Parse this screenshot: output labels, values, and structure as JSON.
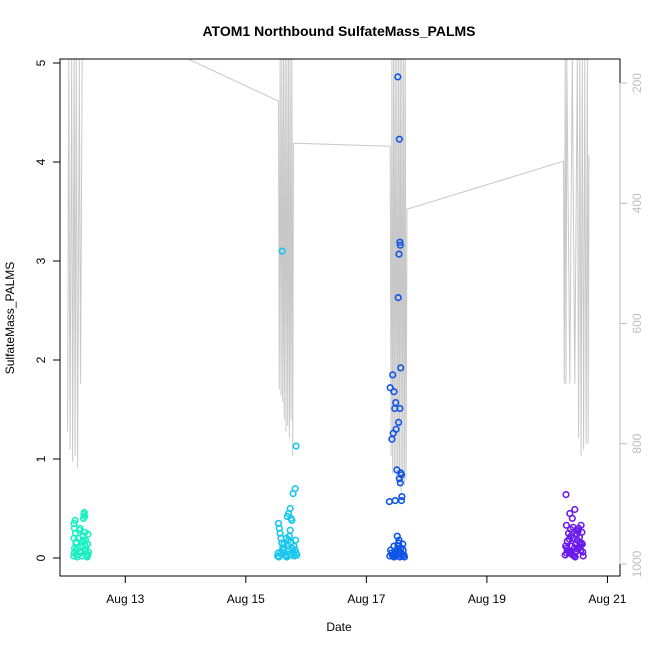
{
  "chart_data": {
    "type": "scatter",
    "title": "ATOM1 Northbound SulfateMass_PALMS",
    "xlabel": "Date",
    "ylabel": "SulfateMass_PALMS",
    "x_ticks": [
      "Aug 13",
      "Aug 15",
      "Aug 17",
      "Aug 19",
      "Aug 21"
    ],
    "y_ticks": [
      "0",
      "1",
      "2",
      "3",
      "4",
      "5"
    ],
    "y2_ticks": [
      "200",
      "400",
      "600",
      "800",
      "1000"
    ],
    "xlim": [
      "2016-08-11 22:00",
      "2016-08-21 05:00"
    ],
    "ylim": [
      0,
      5
    ],
    "y2lim": [
      1020,
      160
    ],
    "right_axis_color": "#BEBEBE",
    "altitude_line_color": "#C8C8C8",
    "series": [
      {
        "color": "#19F0C2",
        "points": [
          [
            "2016-08-12 03:30",
            0.02
          ],
          [
            "2016-08-12 03:40",
            0.05
          ],
          [
            "2016-08-12 03:50",
            0.1
          ],
          [
            "2016-08-12 03:35",
            0.2
          ],
          [
            "2016-08-12 03:45",
            0.3
          ],
          [
            "2016-08-12 03:38",
            0.35
          ],
          [
            "2016-08-12 04:00",
            0.38
          ],
          [
            "2016-08-12 04:10",
            0.25
          ],
          [
            "2016-08-12 04:20",
            0.15
          ],
          [
            "2016-08-12 04:30",
            0.08
          ],
          [
            "2016-08-12 04:40",
            0.03
          ],
          [
            "2016-08-12 04:50",
            0.01
          ],
          [
            "2016-08-12 05:00",
            0.1
          ],
          [
            "2016-08-12 05:20",
            0.2
          ],
          [
            "2016-08-12 05:40",
            0.28
          ],
          [
            "2016-08-12 06:00",
            0.3
          ],
          [
            "2016-08-12 06:20",
            0.05
          ],
          [
            "2016-08-12 06:40",
            0.02
          ],
          [
            "2016-08-12 07:00",
            0.12
          ],
          [
            "2016-08-12 07:10",
            0.22
          ],
          [
            "2016-08-12 07:20",
            0.4
          ],
          [
            "2016-08-12 07:30",
            0.44
          ],
          [
            "2016-08-12 07:40",
            0.46
          ],
          [
            "2016-08-12 07:50",
            0.42
          ],
          [
            "2016-08-12 08:00",
            0.26
          ],
          [
            "2016-08-12 08:10",
            0.18
          ],
          [
            "2016-08-12 08:20",
            0.09
          ],
          [
            "2016-08-12 08:30",
            0.04
          ],
          [
            "2016-08-12 08:40",
            0.02
          ],
          [
            "2016-08-12 08:50",
            0.01
          ],
          [
            "2016-08-12 09:00",
            0.14
          ],
          [
            "2016-08-12 09:10",
            0.24
          ],
          [
            "2016-08-12 09:20",
            0.06
          ],
          [
            "2016-08-12 07:15",
            0.18
          ],
          [
            "2016-08-12 05:50",
            0.06
          ],
          [
            "2016-08-12 06:50",
            0.16
          ],
          [
            "2016-08-12 08:05",
            0.12
          ],
          [
            "2016-08-12 04:35",
            0.16
          ],
          [
            "2016-08-12 09:05",
            0.03
          ]
        ]
      },
      {
        "color": "#18C6EE",
        "points": [
          [
            "2016-08-15 14:30",
            3.1
          ],
          [
            "2016-08-15 20:00",
            1.13
          ],
          [
            "2016-08-15 19:40",
            0.7
          ],
          [
            "2016-08-15 18:50",
            0.65
          ],
          [
            "2016-08-15 17:40",
            0.5
          ],
          [
            "2016-08-15 17:00",
            0.45
          ],
          [
            "2016-08-15 18:00",
            0.4
          ],
          [
            "2016-08-15 18:20",
            0.38
          ],
          [
            "2016-08-15 16:30",
            0.42
          ],
          [
            "2016-08-15 13:00",
            0.35
          ],
          [
            "2016-08-15 13:20",
            0.3
          ],
          [
            "2016-08-15 13:40",
            0.25
          ],
          [
            "2016-08-15 14:00",
            0.2
          ],
          [
            "2016-08-15 14:20",
            0.15
          ],
          [
            "2016-08-15 14:40",
            0.1
          ],
          [
            "2016-08-15 15:00",
            0.08
          ],
          [
            "2016-08-15 15:20",
            0.05
          ],
          [
            "2016-08-15 15:40",
            0.03
          ],
          [
            "2016-08-15 16:00",
            0.02
          ],
          [
            "2016-08-15 16:20",
            0.01
          ],
          [
            "2016-08-15 16:40",
            0.12
          ],
          [
            "2016-08-15 17:00",
            0.18
          ],
          [
            "2016-08-15 17:20",
            0.22
          ],
          [
            "2016-08-15 17:40",
            0.28
          ],
          [
            "2016-08-15 18:00",
            0.16
          ],
          [
            "2016-08-15 18:20",
            0.1
          ],
          [
            "2016-08-15 18:40",
            0.06
          ],
          [
            "2016-08-15 19:00",
            0.04
          ],
          [
            "2016-08-15 19:20",
            0.02
          ],
          [
            "2016-08-15 19:40",
            0.08
          ],
          [
            "2016-08-15 20:00",
            0.05
          ],
          [
            "2016-08-15 20:20",
            0.03
          ],
          [
            "2016-08-15 12:40",
            0.02
          ],
          [
            "2016-08-15 12:50",
            0.05
          ],
          [
            "2016-08-15 13:10",
            0.01
          ],
          [
            "2016-08-15 14:10",
            0.06
          ],
          [
            "2016-08-15 15:10",
            0.14
          ],
          [
            "2016-08-15 16:10",
            0.2
          ],
          [
            "2016-08-15 19:10",
            0.12
          ],
          [
            "2016-08-15 19:50",
            0.18
          ],
          [
            "2016-08-15 17:10",
            0.09
          ],
          [
            "2016-08-15 18:10",
            0.03
          ]
        ]
      },
      {
        "color": "#0F54E6",
        "points": [
          [
            "2016-08-17 12:30",
            4.86
          ],
          [
            "2016-08-17 13:10",
            4.23
          ],
          [
            "2016-08-17 13:20",
            3.19
          ],
          [
            "2016-08-17 13:30",
            3.16
          ],
          [
            "2016-08-17 13:00",
            3.07
          ],
          [
            "2016-08-17 12:40",
            2.63
          ],
          [
            "2016-08-17 13:40",
            1.92
          ],
          [
            "2016-08-17 10:30",
            1.85
          ],
          [
            "2016-08-17 09:30",
            1.72
          ],
          [
            "2016-08-17 11:00",
            1.68
          ],
          [
            "2016-08-17 11:40",
            1.57
          ],
          [
            "2016-08-17 11:20",
            1.51
          ],
          [
            "2016-08-17 13:20",
            1.51
          ],
          [
            "2016-08-17 12:50",
            1.37
          ],
          [
            "2016-08-17 11:50",
            1.3
          ],
          [
            "2016-08-17 10:40",
            1.26
          ],
          [
            "2016-08-17 10:10",
            1.2
          ],
          [
            "2016-08-17 12:10",
            0.89
          ],
          [
            "2016-08-17 13:40",
            0.86
          ],
          [
            "2016-08-17 14:00",
            0.84
          ],
          [
            "2016-08-17 13:10",
            0.8
          ],
          [
            "2016-08-17 13:30",
            0.76
          ],
          [
            "2016-08-17 14:10",
            0.62
          ],
          [
            "2016-08-17 14:00",
            0.58
          ],
          [
            "2016-08-17 09:10",
            0.57
          ],
          [
            "2016-08-17 11:30",
            0.58
          ],
          [
            "2016-08-17 12:20",
            0.22
          ],
          [
            "2016-08-17 13:00",
            0.18
          ],
          [
            "2016-08-17 11:00",
            0.12
          ],
          [
            "2016-08-17 09:40",
            0.08
          ],
          [
            "2016-08-17 10:00",
            0.05
          ],
          [
            "2016-08-17 10:20",
            0.03
          ],
          [
            "2016-08-17 10:40",
            0.02
          ],
          [
            "2016-08-17 11:00",
            0.01
          ],
          [
            "2016-08-17 11:20",
            0.06
          ],
          [
            "2016-08-17 11:40",
            0.04
          ],
          [
            "2016-08-17 12:00",
            0.02
          ],
          [
            "2016-08-17 12:20",
            0.08
          ],
          [
            "2016-08-17 12:40",
            0.05
          ],
          [
            "2016-08-17 13:00",
            0.03
          ],
          [
            "2016-08-17 13:20",
            0.01
          ],
          [
            "2016-08-17 13:40",
            0.06
          ],
          [
            "2016-08-17 14:00",
            0.04
          ],
          [
            "2016-08-17 14:20",
            0.02
          ],
          [
            "2016-08-17 14:40",
            0.08
          ],
          [
            "2016-08-17 15:00",
            0.03
          ],
          [
            "2016-08-17 12:30",
            0.12
          ],
          [
            "2016-08-17 14:30",
            0.14
          ],
          [
            "2016-08-17 09:20",
            0.02
          ],
          [
            "2016-08-17 15:10",
            0.01
          ],
          [
            "2016-08-17 12:50",
            0.15
          ],
          [
            "2016-08-17 13:50",
            0.1
          ]
        ]
      },
      {
        "color": "#6A19EE",
        "points": [
          [
            "2016-08-20 07:30",
            0.64
          ],
          [
            "2016-08-20 11:00",
            0.49
          ],
          [
            "2016-08-20 09:00",
            0.45
          ],
          [
            "2016-08-20 10:00",
            0.4
          ],
          [
            "2016-08-20 07:40",
            0.33
          ],
          [
            "2016-08-20 13:30",
            0.33
          ],
          [
            "2016-08-20 12:30",
            0.3
          ],
          [
            "2016-08-20 11:30",
            0.28
          ],
          [
            "2016-08-20 08:30",
            0.25
          ],
          [
            "2016-08-20 09:30",
            0.22
          ],
          [
            "2016-08-20 10:30",
            0.2
          ],
          [
            "2016-08-20 12:00",
            0.18
          ],
          [
            "2016-08-20 13:00",
            0.16
          ],
          [
            "2016-08-20 14:00",
            0.14
          ],
          [
            "2016-08-20 07:20",
            0.12
          ],
          [
            "2016-08-20 07:50",
            0.1
          ],
          [
            "2016-08-20 08:10",
            0.08
          ],
          [
            "2016-08-20 08:40",
            0.06
          ],
          [
            "2016-08-20 09:10",
            0.05
          ],
          [
            "2016-08-20 09:40",
            0.04
          ],
          [
            "2016-08-20 10:10",
            0.03
          ],
          [
            "2016-08-20 10:40",
            0.02
          ],
          [
            "2016-08-20 11:10",
            0.01
          ],
          [
            "2016-08-20 11:40",
            0.07
          ],
          [
            "2016-08-20 12:10",
            0.09
          ],
          [
            "2016-08-20 12:40",
            0.11
          ],
          [
            "2016-08-20 13:10",
            0.13
          ],
          [
            "2016-08-20 13:40",
            0.15
          ],
          [
            "2016-08-20 14:10",
            0.06
          ],
          [
            "2016-08-20 07:10",
            0.03
          ],
          [
            "2016-08-20 08:00",
            0.17
          ],
          [
            "2016-08-20 08:50",
            0.19
          ],
          [
            "2016-08-20 09:50",
            0.12
          ],
          [
            "2016-08-20 10:50",
            0.1
          ],
          [
            "2016-08-20 11:50",
            0.24
          ],
          [
            "2016-08-20 12:50",
            0.21
          ],
          [
            "2016-08-20 13:50",
            0.26
          ],
          [
            "2016-08-20 09:20",
            0.29
          ],
          [
            "2016-08-20 10:20",
            0.31
          ],
          [
            "2016-08-20 12:20",
            0.27
          ],
          [
            "2016-08-20 13:20",
            0.08
          ],
          [
            "2016-08-20 14:20",
            0.02
          ],
          [
            "2016-08-20 07:45",
            0.05
          ],
          [
            "2016-08-20 11:20",
            0.14
          ]
        ]
      }
    ],
    "altitude_line": [
      [
        "2016-08-12 01:00",
        780
      ],
      [
        "2016-08-12 01:30",
        160
      ],
      [
        "2016-08-12 02:00",
        810
      ],
      [
        "2016-08-12 02:40",
        160
      ],
      [
        "2016-08-12 03:00",
        830
      ],
      [
        "2016-08-12 03:40",
        160
      ],
      [
        "2016-08-12 04:00",
        820
      ],
      [
        "2016-08-12 04:30",
        160
      ],
      [
        "2016-08-12 05:00",
        840
      ],
      [
        "2016-08-12 05:40",
        160
      ],
      [
        "2016-08-12 06:10",
        700
      ],
      [
        "2016-08-12 06:50",
        160
      ],
      [
        "2016-08-14 01:00",
        160
      ],
      [
        "2016-08-15 13:00",
        230
      ],
      [
        "2016-08-15 13:20",
        710
      ],
      [
        "2016-08-15 13:40",
        160
      ],
      [
        "2016-08-15 14:00",
        720
      ],
      [
        "2016-08-15 14:20",
        160
      ],
      [
        "2016-08-15 14:40",
        730
      ],
      [
        "2016-08-15 15:00",
        160
      ],
      [
        "2016-08-15 15:20",
        760
      ],
      [
        "2016-08-15 15:40",
        160
      ],
      [
        "2016-08-15 16:00",
        780
      ],
      [
        "2016-08-15 16:20",
        160
      ],
      [
        "2016-08-15 16:40",
        770
      ],
      [
        "2016-08-15 17:00",
        160
      ],
      [
        "2016-08-15 17:20",
        790
      ],
      [
        "2016-08-15 17:40",
        160
      ],
      [
        "2016-08-15 18:00",
        760
      ],
      [
        "2016-08-15 18:20",
        160
      ],
      [
        "2016-08-15 18:40",
        820
      ],
      [
        "2016-08-15 19:00",
        300
      ],
      [
        "2016-08-17 09:30",
        305
      ],
      [
        "2016-08-17 09:50",
        820
      ],
      [
        "2016-08-17 10:10",
        160
      ],
      [
        "2016-08-17 10:30",
        850
      ],
      [
        "2016-08-17 10:50",
        160
      ],
      [
        "2016-08-17 11:10",
        840
      ],
      [
        "2016-08-17 11:30",
        160
      ],
      [
        "2016-08-17 11:50",
        860
      ],
      [
        "2016-08-17 12:10",
        160
      ],
      [
        "2016-08-17 12:30",
        870
      ],
      [
        "2016-08-17 12:50",
        160
      ],
      [
        "2016-08-17 13:10",
        850
      ],
      [
        "2016-08-17 13:30",
        160
      ],
      [
        "2016-08-17 13:50",
        880
      ],
      [
        "2016-08-17 14:10",
        160
      ],
      [
        "2016-08-17 14:30",
        860
      ],
      [
        "2016-08-17 14:50",
        160
      ],
      [
        "2016-08-17 15:10",
        870
      ],
      [
        "2016-08-17 15:30",
        160
      ],
      [
        "2016-08-17 15:50",
        860
      ],
      [
        "2016-08-17 16:10",
        410
      ],
      [
        "2016-08-20 06:30",
        330
      ],
      [
        "2016-08-20 06:50",
        700
      ],
      [
        "2016-08-20 07:10",
        160
      ],
      [
        "2016-08-20 07:30",
        700
      ],
      [
        "2016-08-20 07:50",
        160
      ],
      [
        "2016-08-20 09:00",
        700
      ],
      [
        "2016-08-20 10:00",
        160
      ],
      [
        "2016-08-20 11:00",
        700
      ],
      [
        "2016-08-20 12:00",
        160
      ],
      [
        "2016-08-20 12:30",
        790
      ],
      [
        "2016-08-20 13:00",
        160
      ],
      [
        "2016-08-20 13:30",
        820
      ],
      [
        "2016-08-20 14:00",
        160
      ],
      [
        "2016-08-20 14:30",
        810
      ],
      [
        "2016-08-20 15:00",
        160
      ],
      [
        "2016-08-20 15:30",
        800
      ],
      [
        "2016-08-20 16:00",
        160
      ],
      [
        "2016-08-20 16:20",
        800
      ],
      [
        "2016-08-20 16:40",
        320
      ]
    ]
  }
}
